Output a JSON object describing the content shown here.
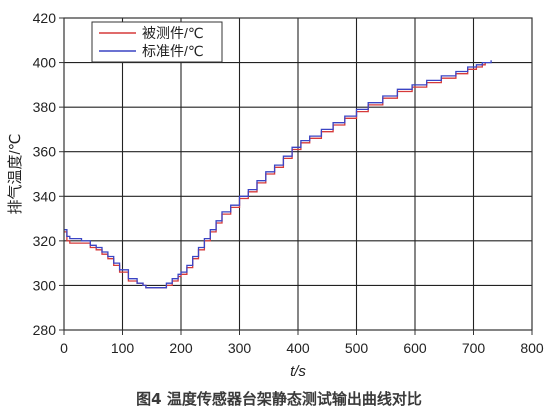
{
  "caption": "图4   温度传感器台架静态测试输出曲线对比",
  "chart_data": {
    "type": "line",
    "title": "",
    "xlabel": "t/s",
    "ylabel": "排气温度/℃",
    "xlim": [
      0,
      800
    ],
    "ylim": [
      280,
      420
    ],
    "xticks": [
      "0",
      "100",
      "200",
      "300",
      "400",
      "500",
      "600",
      "700",
      "800"
    ],
    "yticks": [
      "280",
      "300",
      "320",
      "340",
      "360",
      "380",
      "400",
      "420"
    ],
    "grid": true,
    "legend_position": "top-left",
    "series": [
      {
        "name": "被测件/℃",
        "color": "#d63a3a",
        "x": [
          0,
          5,
          10,
          30,
          45,
          55,
          65,
          75,
          85,
          95,
          110,
          125,
          135,
          140,
          160,
          175,
          185,
          195,
          200,
          210,
          220,
          230,
          240,
          250,
          260,
          270,
          285,
          300,
          315,
          330,
          345,
          360,
          375,
          390,
          405,
          420,
          440,
          460,
          480,
          500,
          520,
          545,
          570,
          595,
          620,
          645,
          670,
          690,
          705,
          715,
          720
        ],
        "y": [
          324,
          320,
          319,
          319,
          317,
          316,
          314,
          312,
          309,
          306,
          302,
          301,
          300,
          299,
          299,
          300,
          302,
          304,
          305,
          308,
          312,
          316,
          320,
          324,
          328,
          332,
          335,
          339,
          342,
          346,
          350,
          353,
          357,
          361,
          364,
          366,
          369,
          372,
          375,
          378,
          381,
          384,
          387,
          389,
          391,
          393,
          395,
          397,
          398,
          399,
          400
        ]
      },
      {
        "name": "标准件/℃",
        "color": "#3a44c4",
        "x": [
          0,
          5,
          10,
          30,
          45,
          55,
          65,
          75,
          85,
          95,
          110,
          125,
          135,
          140,
          160,
          175,
          185,
          195,
          200,
          210,
          220,
          230,
          240,
          250,
          260,
          270,
          285,
          300,
          315,
          330,
          345,
          360,
          375,
          390,
          405,
          420,
          440,
          460,
          480,
          500,
          520,
          545,
          570,
          595,
          620,
          645,
          670,
          690,
          705,
          715,
          725,
          730
        ],
        "y": [
          325,
          322,
          321,
          320,
          318,
          317,
          315,
          313,
          310,
          307,
          303,
          301,
          300,
          299,
          299,
          301,
          303,
          305,
          306,
          309,
          313,
          317,
          321,
          325,
          329,
          333,
          336,
          340,
          343,
          347,
          351,
          354,
          358,
          362,
          365,
          367,
          370,
          373,
          376,
          379,
          382,
          385,
          388,
          390,
          392,
          394,
          396,
          398,
          399,
          400,
          400,
          401
        ]
      }
    ]
  }
}
